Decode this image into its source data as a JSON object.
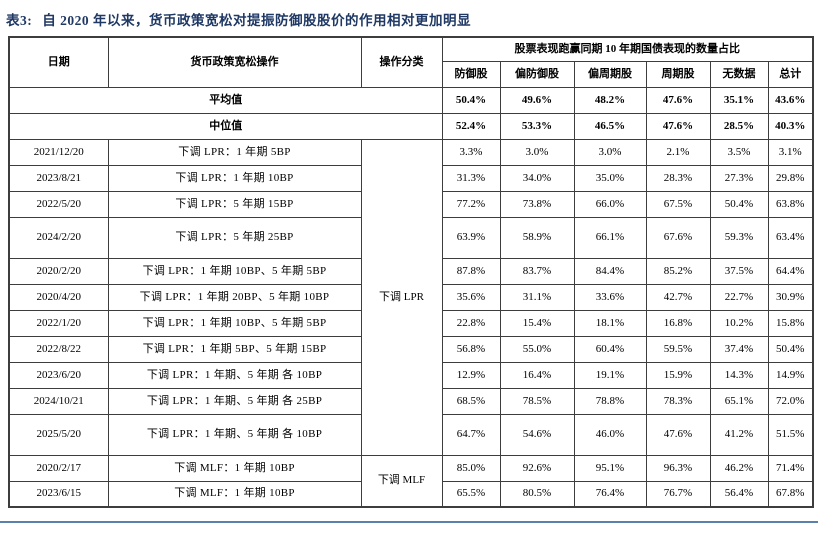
{
  "title": {
    "prefix": "表3:",
    "text": "自 2020 年以来，货币政策宽松对提振防御股股价的作用相对更加明显"
  },
  "colors": {
    "title_navy": "#1f3864",
    "table_border": "#3d3d3d",
    "bottom_rule_blue": "#5b80ad"
  },
  "table": {
    "header": {
      "date": "日期",
      "operation": "货币政策宽松操作",
      "category": "操作分类",
      "group": "股票表现跑赢同期 10 年期国债表现的数量占比",
      "columns": [
        "防御股",
        "偏防御股",
        "偏周期股",
        "周期股",
        "无数据",
        "总计"
      ]
    },
    "summary_rows": [
      {
        "label": "平均值",
        "values": [
          "50.4%",
          "49.6%",
          "48.2%",
          "47.6%",
          "35.1%",
          "43.6%"
        ]
      },
      {
        "label": "中位值",
        "values": [
          "52.4%",
          "53.3%",
          "46.5%",
          "47.6%",
          "28.5%",
          "40.3%"
        ]
      }
    ],
    "categories": [
      {
        "label": "下调 LPR",
        "span": 11
      },
      {
        "label": "下调 MLF",
        "span": 2
      }
    ],
    "rows": [
      {
        "date": "2021/12/20",
        "operation": "下调 LPR：1 年期 5BP",
        "tall": false,
        "values": [
          "3.3%",
          "3.0%",
          "3.0%",
          "2.1%",
          "3.5%",
          "3.1%"
        ]
      },
      {
        "date": "2023/8/21",
        "operation": "下调 LPR：1 年期 10BP",
        "tall": false,
        "values": [
          "31.3%",
          "34.0%",
          "35.0%",
          "28.3%",
          "27.3%",
          "29.8%"
        ]
      },
      {
        "date": "2022/5/20",
        "operation": "下调 LPR：5 年期 15BP",
        "tall": false,
        "values": [
          "77.2%",
          "73.8%",
          "66.0%",
          "67.5%",
          "50.4%",
          "63.8%"
        ]
      },
      {
        "date": "2024/2/20",
        "operation": "下调 LPR：5 年期 25BP",
        "tall": true,
        "values": [
          "63.9%",
          "58.9%",
          "66.1%",
          "67.6%",
          "59.3%",
          "63.4%"
        ]
      },
      {
        "date": "2020/2/20",
        "operation": "下调 LPR：1 年期 10BP、5 年期 5BP",
        "tall": false,
        "values": [
          "87.8%",
          "83.7%",
          "84.4%",
          "85.2%",
          "37.5%",
          "64.4%"
        ]
      },
      {
        "date": "2020/4/20",
        "operation": "下调 LPR：1 年期 20BP、5 年期 10BP",
        "tall": false,
        "values": [
          "35.6%",
          "31.1%",
          "33.6%",
          "42.7%",
          "22.7%",
          "30.9%"
        ]
      },
      {
        "date": "2022/1/20",
        "operation": "下调 LPR：1 年期 10BP、5 年期 5BP",
        "tall": false,
        "values": [
          "22.8%",
          "15.4%",
          "18.1%",
          "16.8%",
          "10.2%",
          "15.8%"
        ]
      },
      {
        "date": "2022/8/22",
        "operation": "下调 LPR：1 年期 5BP、5 年期 15BP",
        "tall": false,
        "values": [
          "56.8%",
          "55.0%",
          "60.4%",
          "59.5%",
          "37.4%",
          "50.4%"
        ]
      },
      {
        "date": "2023/6/20",
        "operation": "下调 LPR：1 年期、5 年期 各 10BP",
        "tall": false,
        "values": [
          "12.9%",
          "16.4%",
          "19.1%",
          "15.9%",
          "14.3%",
          "14.9%"
        ]
      },
      {
        "date": "2024/10/21",
        "operation": "下调 LPR：1 年期、5 年期 各 25BP",
        "tall": false,
        "values": [
          "68.5%",
          "78.5%",
          "78.8%",
          "78.3%",
          "65.1%",
          "72.0%"
        ]
      },
      {
        "date": "2025/5/20",
        "operation": "下调 LPR：1 年期、5 年期 各 10BP",
        "tall": true,
        "values": [
          "64.7%",
          "54.6%",
          "46.0%",
          "47.6%",
          "41.2%",
          "51.5%"
        ]
      },
      {
        "date": "2020/2/17",
        "operation": "下调 MLF：1 年期 10BP",
        "tall": false,
        "values": [
          "85.0%",
          "92.6%",
          "95.1%",
          "96.3%",
          "46.2%",
          "71.4%"
        ]
      },
      {
        "date": "2023/6/15",
        "operation": "下调 MLF：1 年期 10BP",
        "tall": false,
        "values": [
          "65.5%",
          "80.5%",
          "76.4%",
          "76.7%",
          "56.4%",
          "67.8%"
        ]
      }
    ]
  }
}
